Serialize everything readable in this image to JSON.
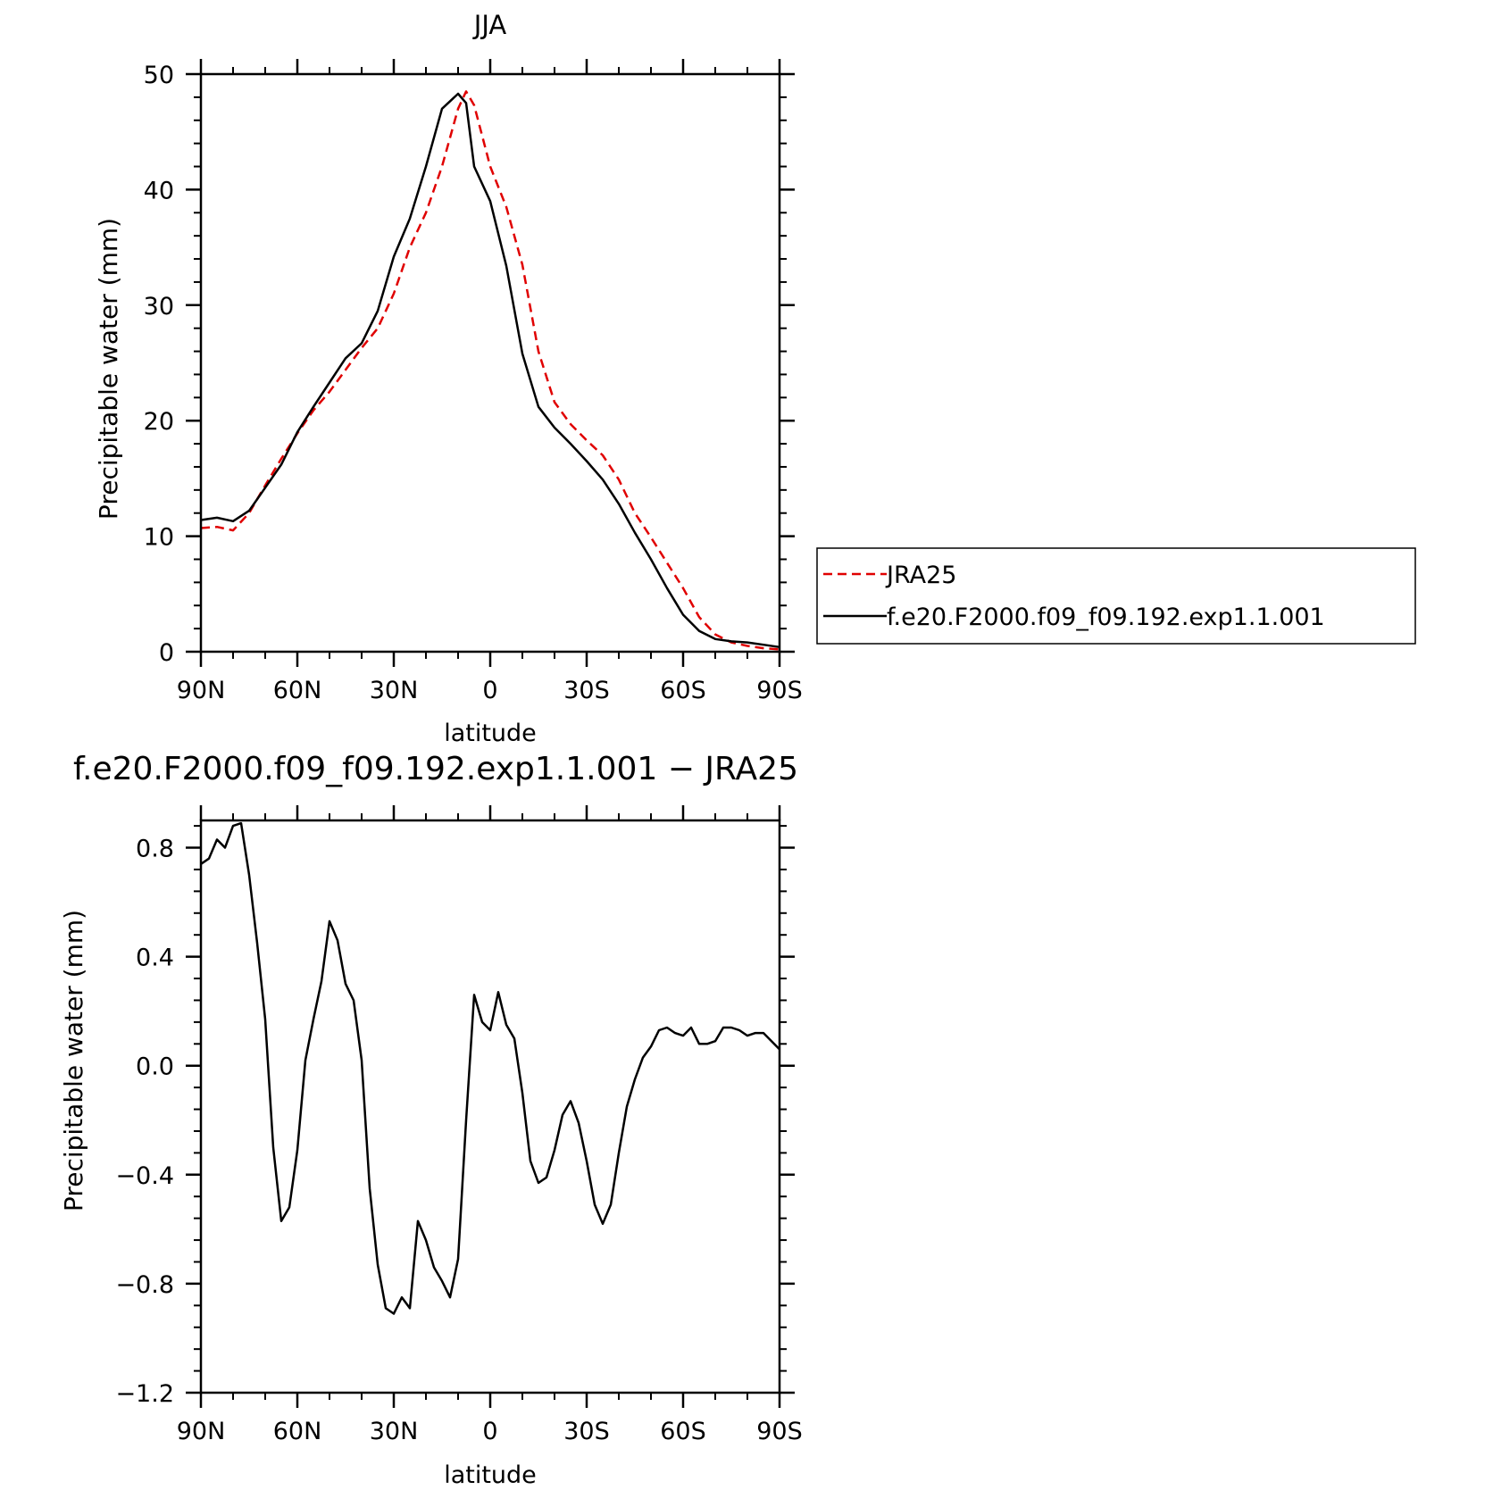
{
  "chart_data": [
    {
      "type": "line",
      "title": "JJA",
      "xlabel": "latitude",
      "ylabel": "Precipitable water (mm)",
      "xlim": [
        90,
        -90
      ],
      "ylim": [
        0,
        50
      ],
      "x_ticks": [
        90,
        60,
        30,
        0,
        -30,
        -60,
        -90
      ],
      "x_tick_labels": [
        "90N",
        "60N",
        "30N",
        "0",
        "30S",
        "60S",
        "90S"
      ],
      "y_ticks": [
        0,
        10,
        20,
        30,
        40,
        50
      ],
      "y_tick_labels": [
        "0",
        "10",
        "20",
        "30",
        "40",
        "50"
      ],
      "legend_position": "right",
      "series": [
        {
          "name": "JRA25",
          "color": "#e00000",
          "dash": "dashed",
          "x": [
            90,
            85,
            80,
            75,
            70,
            65,
            60,
            55,
            50,
            45,
            40,
            35,
            30,
            25,
            20,
            15,
            10,
            7.5,
            5,
            0,
            -5,
            -10,
            -15,
            -20,
            -25,
            -30,
            -35,
            -40,
            -45,
            -50,
            -55,
            -60,
            -65,
            -70,
            -75,
            -80,
            -85,
            -90
          ],
          "values": [
            10.7,
            10.8,
            10.5,
            12.0,
            14.4,
            16.7,
            18.9,
            20.9,
            22.5,
            24.4,
            26.3,
            28.0,
            31.0,
            35.0,
            38.0,
            42.0,
            47.0,
            48.5,
            47.3,
            42.0,
            38.5,
            33.5,
            26.0,
            21.6,
            19.7,
            18.3,
            17.0,
            14.9,
            12.0,
            9.9,
            7.7,
            5.5,
            3.0,
            1.5,
            0.8,
            0.5,
            0.3,
            0.2
          ]
        },
        {
          "name": "f.e20.F2000.f09_f09.192.exp1.1.001",
          "color": "#000000",
          "dash": "solid",
          "x": [
            90,
            85,
            80,
            75,
            70,
            65,
            60,
            55,
            50,
            45,
            40,
            35,
            30,
            25,
            20,
            15,
            10,
            7.5,
            5,
            0,
            -5,
            -10,
            -15,
            -20,
            -25,
            -30,
            -35,
            -40,
            -45,
            -50,
            -55,
            -60,
            -65,
            -70,
            -75,
            -80,
            -85,
            -90
          ],
          "values": [
            11.4,
            11.6,
            11.3,
            12.2,
            14.2,
            16.2,
            19.0,
            21.2,
            23.3,
            25.4,
            26.7,
            29.5,
            34.2,
            37.5,
            42.0,
            47.0,
            48.3,
            47.5,
            42.0,
            39.0,
            33.4,
            25.8,
            21.2,
            19.4,
            18.0,
            16.5,
            14.9,
            12.8,
            10.3,
            8.0,
            5.5,
            3.2,
            1.8,
            1.1,
            0.9,
            0.8,
            0.6,
            0.4
          ]
        }
      ]
    },
    {
      "type": "line",
      "title": "f.e20.F2000.f09_f09.192.exp1.1.001 − JRA25",
      "xlabel": "latitude",
      "ylabel": "Precipitable water (mm)",
      "xlim": [
        90,
        -90
      ],
      "ylim": [
        -1.2,
        0.9
      ],
      "x_ticks": [
        90,
        60,
        30,
        0,
        -30,
        -60,
        -90
      ],
      "x_tick_labels": [
        "90N",
        "60N",
        "30N",
        "0",
        "30S",
        "60S",
        "90S"
      ],
      "y_ticks": [
        -1.2,
        -0.8,
        -0.4,
        0.0,
        0.4,
        0.8
      ],
      "y_tick_labels": [
        "−1.2",
        "−0.8",
        "−0.4",
        "0.0",
        "0.4",
        "0.8"
      ],
      "series": [
        {
          "color": "#000000",
          "dash": "solid",
          "x": [
            90,
            87.5,
            85,
            82.5,
            80,
            77.5,
            75,
            72.5,
            70,
            67.5,
            65,
            62.5,
            60,
            57.5,
            55,
            52.5,
            50,
            47.5,
            45,
            42.5,
            40,
            37.5,
            35,
            32.5,
            30,
            27.5,
            25,
            22.5,
            20,
            17.5,
            15,
            12.5,
            10,
            7.5,
            5,
            2.5,
            0,
            -2.5,
            -5,
            -7.5,
            -10,
            -12.5,
            -15,
            -17.5,
            -20,
            -22.5,
            -25,
            -27.5,
            -30,
            -32.5,
            -35,
            -37.5,
            -40,
            -42.5,
            -45,
            -47.5,
            -50,
            -52.5,
            -55,
            -57.5,
            -60,
            -62.5,
            -65,
            -67.5,
            -70,
            -72.5,
            -75,
            -77.5,
            -80,
            -82.5,
            -85,
            -87.5,
            -90
          ],
          "values": [
            0.74,
            0.76,
            0.83,
            0.8,
            0.88,
            0.89,
            0.7,
            0.45,
            0.17,
            -0.3,
            -0.57,
            -0.52,
            -0.31,
            0.02,
            0.17,
            0.31,
            0.53,
            0.46,
            0.3,
            0.24,
            0.02,
            -0.45,
            -0.73,
            -0.89,
            -0.91,
            -0.85,
            -0.89,
            -0.57,
            -0.64,
            -0.74,
            -0.79,
            -0.85,
            -0.71,
            -0.2,
            0.26,
            0.16,
            0.13,
            0.27,
            0.15,
            0.1,
            -0.1,
            -0.35,
            -0.43,
            -0.41,
            -0.31,
            -0.18,
            -0.13,
            -0.21,
            -0.35,
            -0.51,
            -0.58,
            -0.51,
            -0.32,
            -0.15,
            -0.05,
            0.03,
            0.07,
            0.13,
            0.14,
            0.12,
            0.11,
            0.14,
            0.08,
            0.08,
            0.09,
            0.14,
            0.14,
            0.13,
            0.11,
            0.12,
            0.12,
            0.09,
            0.06
          ]
        }
      ]
    }
  ]
}
